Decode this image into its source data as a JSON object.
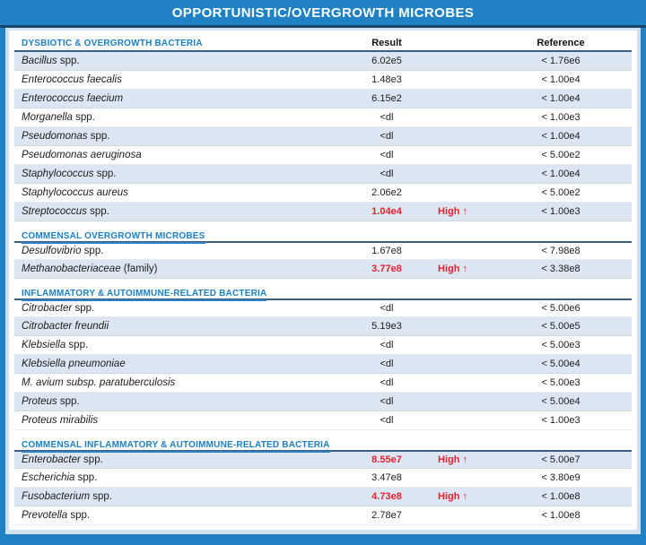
{
  "title": "OPPORTUNISTIC/OVERGROWTH MICROBES",
  "columns": {
    "result": "Result",
    "reference": "Reference"
  },
  "colors": {
    "header_bar_blue": "#2181c5",
    "navy_line": "#17456b",
    "inner_border_blue": "#cfe2f1",
    "section_label_blue": "#1e7ec4",
    "row_shade_blue": "#dce6f2",
    "rule_dark_blue": "#3a5f85",
    "high_red": "#e42230"
  },
  "sections": [
    {
      "label": "DYSBIOTIC & OVERGROWTH BACTERIA",
      "rows": [
        {
          "genus": "Bacillus",
          "suffix": " spp.",
          "result": "6.02e5",
          "flag": "",
          "reference": "< 1.76e6"
        },
        {
          "genus": "Enterococcus faecalis",
          "suffix": "",
          "result": "1.48e3",
          "flag": "",
          "reference": "< 1.00e4"
        },
        {
          "genus": "Enterococcus faecium",
          "suffix": "",
          "result": "6.15e2",
          "flag": "",
          "reference": "< 1.00e4"
        },
        {
          "genus": "Morganella",
          "suffix": " spp.",
          "result": "<dl",
          "flag": "",
          "reference": "< 1.00e3"
        },
        {
          "genus": "Pseudomonas",
          "suffix": " spp.",
          "result": "<dl",
          "flag": "",
          "reference": "< 1.00e4"
        },
        {
          "genus": "Pseudomonas aeruginosa",
          "suffix": "",
          "result": "<dl",
          "flag": "",
          "reference": "< 5.00e2"
        },
        {
          "genus": "Staphylococcus",
          "suffix": " spp.",
          "result": "<dl",
          "flag": "",
          "reference": "< 1.00e4"
        },
        {
          "genus": "Staphylococcus aureus",
          "suffix": "",
          "result": "2.06e2",
          "flag": "",
          "reference": "< 5.00e2"
        },
        {
          "genus": "Streptococcus",
          "suffix": " spp.",
          "result": "1.04e4",
          "flag": "High ↑",
          "reference": "< 1.00e3"
        }
      ]
    },
    {
      "label": "COMMENSAL OVERGROWTH MICROBES",
      "rows": [
        {
          "genus": "Desulfovibrio",
          "suffix": " spp.",
          "result": "1.67e8",
          "flag": "",
          "reference": "< 7.98e8"
        },
        {
          "genus": "Methanobacteriaceae",
          "suffix": " (family)",
          "result": "3.77e8",
          "flag": "High ↑",
          "reference": "< 3.38e8"
        }
      ]
    },
    {
      "label": "INFLAMMATORY & AUTOIMMUNE-RELATED BACTERIA",
      "rows": [
        {
          "genus": "Citrobacter",
          "suffix": " spp.",
          "result": "<dl",
          "flag": "",
          "reference": "< 5.00e6"
        },
        {
          "genus": "Citrobacter freundii",
          "suffix": "",
          "result": "5.19e3",
          "flag": "",
          "reference": "< 5.00e5"
        },
        {
          "genus": "Klebsiella",
          "suffix": " spp.",
          "result": "<dl",
          "flag": "",
          "reference": "< 5.00e3"
        },
        {
          "genus": "Klebsiella pneumoniae",
          "suffix": "",
          "result": "<dl",
          "flag": "",
          "reference": "< 5.00e4"
        },
        {
          "genus": "M. avium subsp. paratuberculosis",
          "suffix": "",
          "result": "<dl",
          "flag": "",
          "reference": "< 5.00e3"
        },
        {
          "genus": "Proteus",
          "suffix": " spp.",
          "result": "<dl",
          "flag": "",
          "reference": "< 5.00e4"
        },
        {
          "genus": "Proteus mirabilis",
          "suffix": "",
          "result": "<dl",
          "flag": "",
          "reference": "< 1.00e3"
        }
      ]
    },
    {
      "label": "COMMENSAL INFLAMMATORY & AUTOIMMUNE-RELATED BACTERIA",
      "rows": [
        {
          "genus": "Enterobacter",
          "suffix": " spp.",
          "result": "8.55e7",
          "flag": "High ↑",
          "reference": "< 5.00e7"
        },
        {
          "genus": "Escherichia",
          "suffix": " spp.",
          "result": "3.47e8",
          "flag": "",
          "reference": "< 3.80e9"
        },
        {
          "genus": "Fusobacterium",
          "suffix": " spp.",
          "result": "4.73e8",
          "flag": "High ↑",
          "reference": "< 1.00e8"
        },
        {
          "genus": "Prevotella",
          "suffix": " spp.",
          "result": "2.78e7",
          "flag": "",
          "reference": "< 1.00e8"
        }
      ]
    }
  ]
}
